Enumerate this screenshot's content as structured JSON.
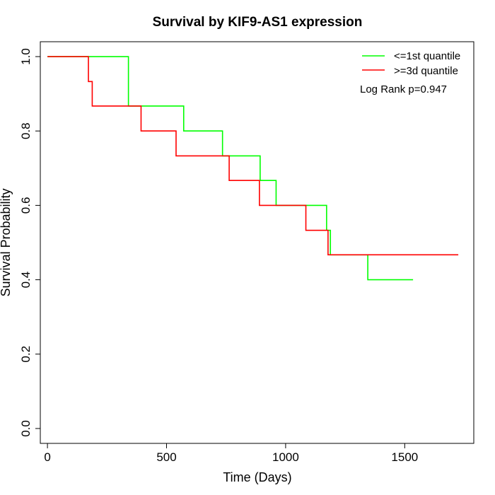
{
  "chart_data": {
    "type": "line",
    "title": "Survival by KIF9-AS1 expression",
    "xlabel": "Time (Days)",
    "ylabel": "Survival Probability",
    "xlim": [
      -30,
      1790
    ],
    "ylim": [
      -0.04,
      1.04
    ],
    "x_ticks": [
      0,
      500,
      1000,
      1500
    ],
    "x_tick_labels": [
      "0",
      "500",
      "1000",
      "1500"
    ],
    "y_ticks": [
      0.0,
      0.2,
      0.4,
      0.6,
      0.8,
      1.0
    ],
    "y_tick_labels": [
      "0.0",
      "0.2",
      "0.4",
      "0.6",
      "0.8",
      "1.0"
    ],
    "grid": false,
    "legend_position": "top-right",
    "step": "post",
    "series": [
      {
        "name": "<=1st quantile",
        "color": "#00ff00",
        "x": [
          0,
          340,
          572,
          735,
          893,
          960,
          1172,
          1188,
          1345,
          1535
        ],
        "y": [
          1.0,
          0.867,
          0.8,
          0.733,
          0.667,
          0.6,
          0.533,
          0.467,
          0.4,
          0.4
        ]
      },
      {
        "name": ">=3d quantile",
        "color": "#ff0000",
        "x": [
          0,
          172,
          188,
          393,
          540,
          763,
          890,
          1085,
          1178,
          1725
        ],
        "y": [
          1.0,
          0.933,
          0.867,
          0.8,
          0.733,
          0.667,
          0.6,
          0.533,
          0.467,
          0.467
        ]
      }
    ],
    "annotations": [
      {
        "text": "Log Rank p=0.947",
        "position": "top-right"
      }
    ]
  }
}
